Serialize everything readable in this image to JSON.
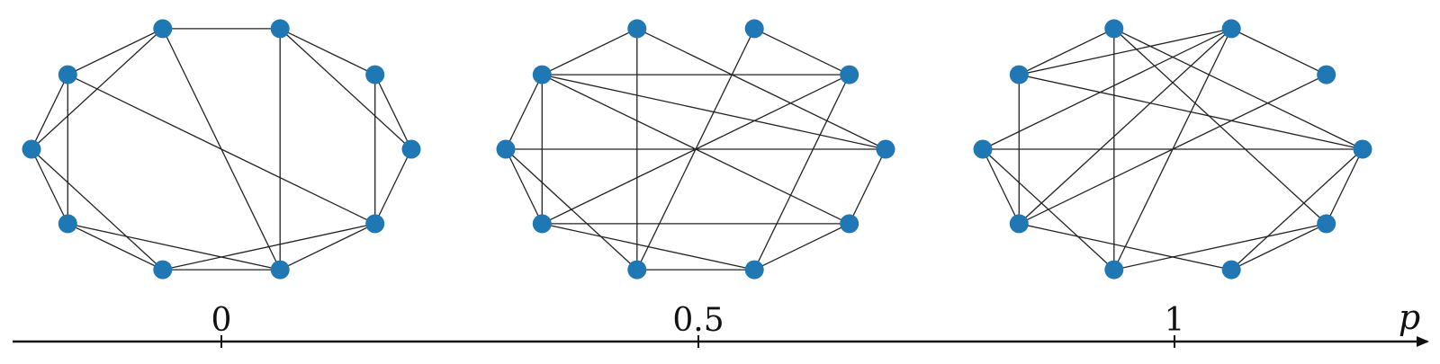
{
  "chart_data": {
    "type": "diagram",
    "description_axis": {
      "label": "p",
      "ticks": [
        "0",
        "0.5",
        "1"
      ]
    },
    "node_color": "#1f77b4",
    "node_count": 10,
    "graphs": [
      {
        "p": "0",
        "edges": [
          [
            0,
            1
          ],
          [
            0,
            2
          ],
          [
            1,
            9
          ],
          [
            1,
            2
          ],
          [
            2,
            8
          ],
          [
            2,
            3
          ],
          [
            3,
            4
          ],
          [
            4,
            5
          ],
          [
            5,
            6
          ],
          [
            5,
            7
          ],
          [
            6,
            7
          ],
          [
            6,
            8
          ],
          [
            7,
            9
          ],
          [
            7,
            8
          ],
          [
            8,
            9
          ],
          [
            9,
            0
          ],
          [
            3,
            5
          ],
          [
            4,
            6
          ],
          [
            4,
            9
          ],
          [
            3,
            8
          ]
        ]
      },
      {
        "p": "0.5",
        "edges": [
          [
            0,
            5
          ],
          [
            0,
            3
          ],
          [
            0,
            4
          ],
          [
            1,
            8
          ],
          [
            1,
            6
          ],
          [
            1,
            2
          ],
          [
            3,
            4
          ],
          [
            4,
            6
          ],
          [
            4,
            5
          ],
          [
            5,
            6
          ],
          [
            7,
            3
          ],
          [
            6,
            8
          ],
          [
            6,
            9
          ],
          [
            7,
            2
          ],
          [
            7,
            8
          ],
          [
            8,
            9
          ],
          [
            9,
            0
          ],
          [
            4,
            9
          ],
          [
            1,
            4
          ],
          [
            7,
            5
          ]
        ]
      },
      {
        "p": "1",
        "edges": [
          [
            0,
            5
          ],
          [
            0,
            3
          ],
          [
            0,
            4
          ],
          [
            1,
            2
          ],
          [
            2,
            4
          ],
          [
            2,
            5
          ],
          [
            2,
            6
          ],
          [
            3,
            4
          ],
          [
            3,
            9
          ],
          [
            4,
            6
          ],
          [
            5,
            6
          ],
          [
            5,
            7
          ],
          [
            6,
            8
          ],
          [
            7,
            2
          ],
          [
            7,
            9
          ],
          [
            7,
            3
          ],
          [
            8,
            9
          ],
          [
            9,
            0
          ],
          [
            8,
            0
          ],
          [
            1,
            6
          ]
        ]
      }
    ]
  }
}
